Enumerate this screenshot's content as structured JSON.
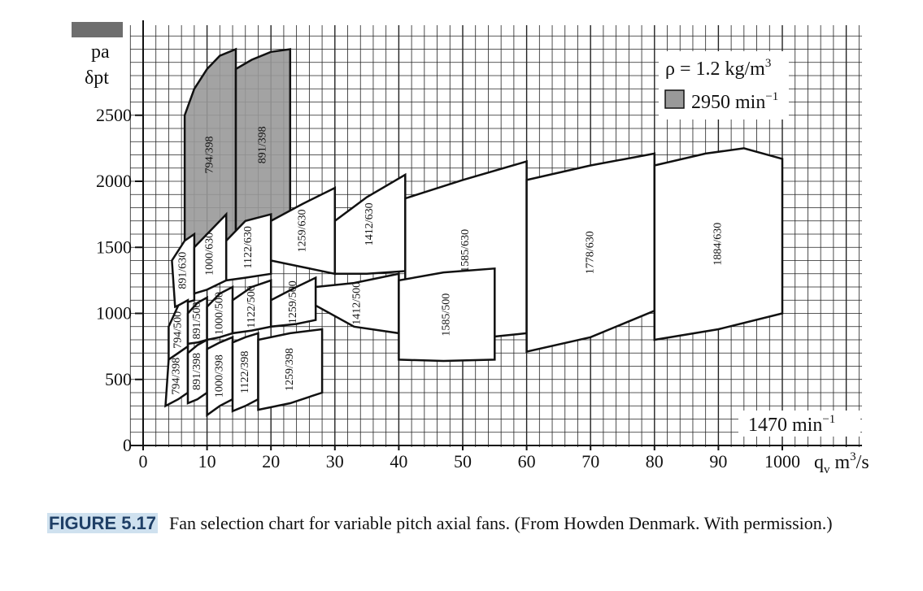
{
  "chart_data": {
    "type": "area",
    "y_label_lines": [
      "pa",
      "δpt"
    ],
    "x_unit": "q",
    "x_unit_sub": "v",
    "x_unit_tail": " m",
    "x_unit_sup": "3",
    "x_unit_end": "/s",
    "x_ticks": [
      "0",
      "10",
      "20",
      "30",
      "40",
      "50",
      "60",
      "70",
      "80",
      "90",
      "1000"
    ],
    "y_ticks": [
      "0",
      "500",
      "1000",
      "1500",
      "2000",
      "2500"
    ],
    "xlim": [
      0,
      100
    ],
    "ylim": [
      0,
      3100
    ],
    "grid": true,
    "legend": {
      "density_base": "ρ = 1.2 kg/m",
      "density_sup": "3",
      "speed_high_base": "2950 min",
      "speed_high_sup": "−1",
      "speed_low_base": "1470 min",
      "speed_low_sup": "−1"
    },
    "speed_high_color": "#999999",
    "speed_low_color": "#ffffff",
    "regions": [
      {
        "label": "794/398",
        "speed": "high",
        "polygon": [
          [
            6.5,
            1500
          ],
          [
            6.5,
            2500
          ],
          [
            8,
            2700
          ],
          [
            10,
            2850
          ],
          [
            12,
            2950
          ],
          [
            14.5,
            3000
          ],
          [
            14.5,
            1550
          ],
          [
            12.5,
            1450
          ],
          [
            10,
            1400
          ],
          [
            8,
            1450
          ]
        ]
      },
      {
        "label": "891/398",
        "speed": "high",
        "polygon": [
          [
            14.5,
            1550
          ],
          [
            14.5,
            2850
          ],
          [
            17,
            2920
          ],
          [
            20,
            2980
          ],
          [
            23,
            3000
          ],
          [
            23,
            1750
          ],
          [
            20,
            1680
          ],
          [
            17,
            1620
          ]
        ]
      },
      {
        "label": "891/630",
        "speed": "low",
        "polygon": [
          [
            5,
            1050
          ],
          [
            4.5,
            1400
          ],
          [
            6.5,
            1550
          ],
          [
            8,
            1600
          ],
          [
            8,
            1100
          ],
          [
            6.5,
            1080
          ]
        ]
      },
      {
        "label": "1000/630",
        "speed": "low",
        "polygon": [
          [
            8,
            1150
          ],
          [
            8,
            1500
          ],
          [
            10,
            1600
          ],
          [
            13,
            1750
          ],
          [
            13,
            1250
          ],
          [
            10,
            1180
          ]
        ]
      },
      {
        "label": "1122/630",
        "speed": "low",
        "polygon": [
          [
            13,
            1250
          ],
          [
            13,
            1550
          ],
          [
            16,
            1700
          ],
          [
            20,
            1750
          ],
          [
            20,
            1300
          ],
          [
            16,
            1270
          ]
        ]
      },
      {
        "label": "1259/630",
        "speed": "low",
        "polygon": [
          [
            20,
            1400
          ],
          [
            20,
            1700
          ],
          [
            25,
            1830
          ],
          [
            30,
            1950
          ],
          [
            30,
            1300
          ],
          [
            25,
            1350
          ]
        ]
      },
      {
        "label": "1412/630",
        "speed": "low",
        "polygon": [
          [
            30,
            1300
          ],
          [
            30,
            1700
          ],
          [
            35,
            1880
          ],
          [
            41,
            2050
          ],
          [
            41,
            1320
          ],
          [
            35,
            1300
          ]
        ]
      },
      {
        "label": "1585/630",
        "speed": "low",
        "polygon": [
          [
            41,
            1050
          ],
          [
            41,
            1870
          ],
          [
            50,
            2010
          ],
          [
            60,
            2150
          ],
          [
            60,
            850
          ],
          [
            50,
            800
          ]
        ]
      },
      {
        "label": "1778/630",
        "speed": "low",
        "polygon": [
          [
            60,
            710
          ],
          [
            60,
            2010
          ],
          [
            70,
            2120
          ],
          [
            80,
            2210
          ],
          [
            80,
            1020
          ],
          [
            70,
            820
          ]
        ]
      },
      {
        "label": "1884/630",
        "speed": "low",
        "polygon": [
          [
            80,
            800
          ],
          [
            80,
            2120
          ],
          [
            88,
            2210
          ],
          [
            94,
            2250
          ],
          [
            100,
            2170
          ],
          [
            100,
            1000
          ],
          [
            90,
            880
          ]
        ]
      },
      {
        "label": "794/500",
        "speed": "low",
        "polygon": [
          [
            4,
            650
          ],
          [
            4,
            900
          ],
          [
            5.5,
            1060
          ],
          [
            7,
            1100
          ],
          [
            7,
            750
          ],
          [
            5.5,
            700
          ]
        ]
      },
      {
        "label": "891/500",
        "speed": "low",
        "polygon": [
          [
            7,
            770
          ],
          [
            7,
            1000
          ],
          [
            8.5,
            1080
          ],
          [
            10,
            1120
          ],
          [
            10,
            800
          ],
          [
            8.5,
            780
          ]
        ]
      },
      {
        "label": "1000/500",
        "speed": "low",
        "polygon": [
          [
            10,
            800
          ],
          [
            10,
            1050
          ],
          [
            12,
            1150
          ],
          [
            14,
            1200
          ],
          [
            14,
            850
          ],
          [
            12,
            820
          ]
        ]
      },
      {
        "label": "1122/500",
        "speed": "low",
        "polygon": [
          [
            14,
            850
          ],
          [
            14,
            1100
          ],
          [
            17,
            1200
          ],
          [
            20,
            1250
          ],
          [
            20,
            900
          ],
          [
            17,
            870
          ]
        ]
      },
      {
        "label": "1259/500",
        "speed": "low",
        "polygon": [
          [
            20,
            900
          ],
          [
            20,
            1100
          ],
          [
            24,
            1200
          ],
          [
            27,
            1270
          ],
          [
            27,
            950
          ],
          [
            24,
            920
          ]
        ]
      },
      {
        "label": "1412/500",
        "speed": "low",
        "polygon": [
          [
            27,
            1060
          ],
          [
            27,
            1200
          ],
          [
            33,
            1230
          ],
          [
            40,
            1300
          ],
          [
            40,
            850
          ],
          [
            33,
            900
          ]
        ]
      },
      {
        "label": "1585/500",
        "speed": "low",
        "polygon": [
          [
            40,
            650
          ],
          [
            40,
            1250
          ],
          [
            47,
            1310
          ],
          [
            55,
            1340
          ],
          [
            55,
            650
          ],
          [
            47,
            640
          ]
        ]
      },
      {
        "label": "794/398",
        "speed": "low",
        "polygon": [
          [
            3.5,
            300
          ],
          [
            4,
            650
          ],
          [
            5.5,
            700
          ],
          [
            7,
            750
          ],
          [
            7,
            400
          ],
          [
            5.5,
            350
          ]
        ]
      },
      {
        "label": "891/398",
        "speed": "low",
        "polygon": [
          [
            7,
            320
          ],
          [
            7,
            700
          ],
          [
            8.5,
            760
          ],
          [
            10,
            800
          ],
          [
            10,
            400
          ],
          [
            8.5,
            350
          ]
        ]
      },
      {
        "label": "1000/398",
        "speed": "low",
        "polygon": [
          [
            10,
            230
          ],
          [
            10,
            730
          ],
          [
            12,
            780
          ],
          [
            14,
            820
          ],
          [
            14,
            350
          ],
          [
            12,
            300
          ]
        ]
      },
      {
        "label": "1122/398",
        "speed": "low",
        "polygon": [
          [
            14,
            260
          ],
          [
            14,
            780
          ],
          [
            16,
            820
          ],
          [
            18,
            850
          ],
          [
            18,
            350
          ],
          [
            16,
            300
          ]
        ]
      },
      {
        "label": "1259/398",
        "speed": "low",
        "polygon": [
          [
            18,
            270
          ],
          [
            18,
            800
          ],
          [
            23,
            850
          ],
          [
            28,
            880
          ],
          [
            28,
            400
          ],
          [
            23,
            320
          ]
        ]
      }
    ]
  },
  "caption": {
    "figure_number": "FIGURE 5.17",
    "text": "Fan selection chart for variable pitch axial fans. (From Howden Denmark. With permission.)"
  }
}
